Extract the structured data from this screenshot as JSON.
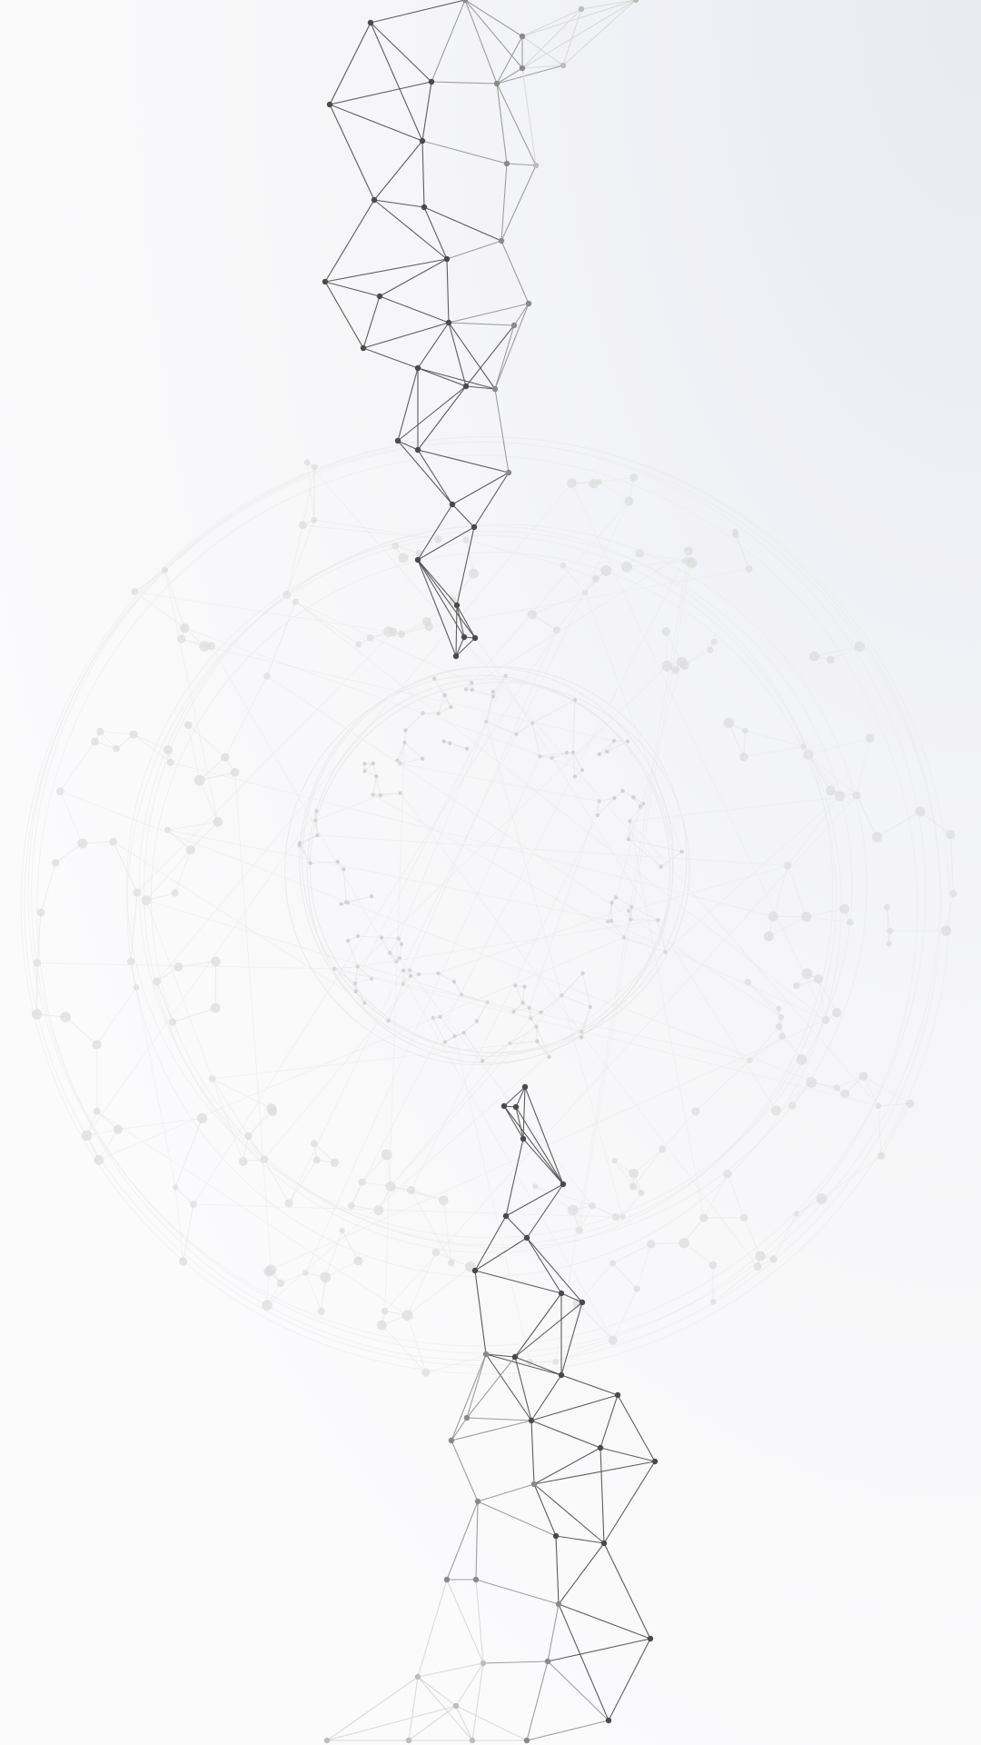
{
  "scene": {
    "description_free": true,
    "background": {
      "top_right": "#e8eaf2",
      "center": "#f6f6f8",
      "bottom": "#fbfbfc"
    },
    "colors": {
      "dark_line": "#555555",
      "mid_line": "#9a9a9a",
      "light_line": "#d9d9d9",
      "faint_line": "#e9e9e9",
      "dark_node": "#4a4a4a",
      "light_node": "#dcdcdc"
    }
  }
}
